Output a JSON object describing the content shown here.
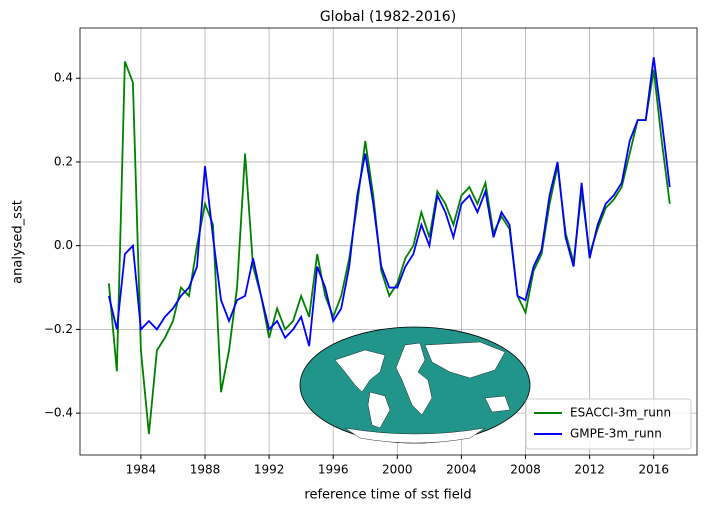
{
  "chart_data": {
    "type": "line",
    "title": "Global (1982-2016)",
    "x_label": "reference time of sst field",
    "y_label": "analysed_sst",
    "x": [
      1982.0,
      1982.5,
      1983.0,
      1983.5,
      1984.0,
      1984.5,
      1985.0,
      1985.5,
      1986.0,
      1986.5,
      1987.0,
      1987.5,
      1988.0,
      1988.5,
      1989.0,
      1989.5,
      1990.0,
      1990.5,
      1991.0,
      1991.5,
      1992.0,
      1992.5,
      1993.0,
      1993.5,
      1994.0,
      1994.5,
      1995.0,
      1995.5,
      1996.0,
      1996.5,
      1997.0,
      1997.5,
      1998.0,
      1998.5,
      1999.0,
      1999.5,
      2000.0,
      2000.5,
      2001.0,
      2001.5,
      2002.0,
      2002.5,
      2003.0,
      2003.5,
      2004.0,
      2004.5,
      2005.0,
      2005.5,
      2006.0,
      2006.5,
      2007.0,
      2007.5,
      2008.0,
      2008.5,
      2009.0,
      2009.5,
      2010.0,
      2010.5,
      2011.0,
      2011.5,
      2012.0,
      2012.5,
      2013.0,
      2013.5,
      2014.0,
      2014.5,
      2015.0,
      2015.5,
      2016.0,
      2016.5,
      2017.0
    ],
    "series": [
      {
        "name": "ESACCI-3m_runn",
        "color": "#008000",
        "values": [
          -0.09,
          -0.3,
          0.44,
          0.39,
          -0.25,
          -0.45,
          -0.25,
          -0.22,
          -0.18,
          -0.1,
          -0.12,
          0.0,
          0.1,
          0.05,
          -0.35,
          -0.25,
          -0.1,
          0.22,
          -0.05,
          -0.12,
          -0.22,
          -0.15,
          -0.2,
          -0.18,
          -0.12,
          -0.17,
          -0.02,
          -0.12,
          -0.17,
          -0.12,
          -0.03,
          0.1,
          0.25,
          0.12,
          -0.06,
          -0.12,
          -0.09,
          -0.03,
          0.0,
          0.08,
          0.02,
          0.13,
          0.1,
          0.05,
          0.12,
          0.14,
          0.1,
          0.15,
          0.03,
          0.07,
          0.04,
          -0.12,
          -0.16,
          -0.06,
          -0.02,
          0.1,
          0.19,
          0.03,
          -0.04,
          0.13,
          -0.02,
          0.04,
          0.09,
          0.11,
          0.14,
          0.22,
          0.3,
          0.3,
          0.42,
          0.25,
          0.1
        ]
      },
      {
        "name": "GMPE-3m_runn",
        "color": "#0000ff",
        "values": [
          -0.12,
          -0.2,
          -0.02,
          0.0,
          -0.2,
          -0.18,
          -0.2,
          -0.17,
          -0.15,
          -0.12,
          -0.1,
          -0.05,
          0.19,
          0.02,
          -0.13,
          -0.18,
          -0.13,
          -0.12,
          -0.03,
          -0.12,
          -0.2,
          -0.18,
          -0.22,
          -0.2,
          -0.17,
          -0.24,
          -0.05,
          -0.1,
          -0.18,
          -0.15,
          -0.05,
          0.12,
          0.22,
          0.1,
          -0.05,
          -0.1,
          -0.1,
          -0.05,
          -0.02,
          0.05,
          0.0,
          0.12,
          0.08,
          0.02,
          0.1,
          0.12,
          0.08,
          0.13,
          0.02,
          0.08,
          0.05,
          -0.12,
          -0.13,
          -0.05,
          -0.01,
          0.12,
          0.2,
          0.02,
          -0.05,
          0.15,
          -0.03,
          0.05,
          0.1,
          0.12,
          0.15,
          0.25,
          0.3,
          0.3,
          0.45,
          0.3,
          0.14
        ]
      }
    ],
    "xlim": [
      1980.2,
      2018.7
    ],
    "xticks": [
      1984,
      1988,
      1992,
      1996,
      2000,
      2004,
      2008,
      2012,
      2016
    ],
    "ylim": [
      -0.5,
      0.52
    ],
    "yticks": [
      {
        "value": -0.4,
        "label": "−0.4"
      },
      {
        "value": -0.2,
        "label": "−0.2"
      },
      {
        "value": 0,
        "label": "0.0"
      },
      0.2,
      0.4
    ],
    "grid": true,
    "legend": "lower right"
  }
}
